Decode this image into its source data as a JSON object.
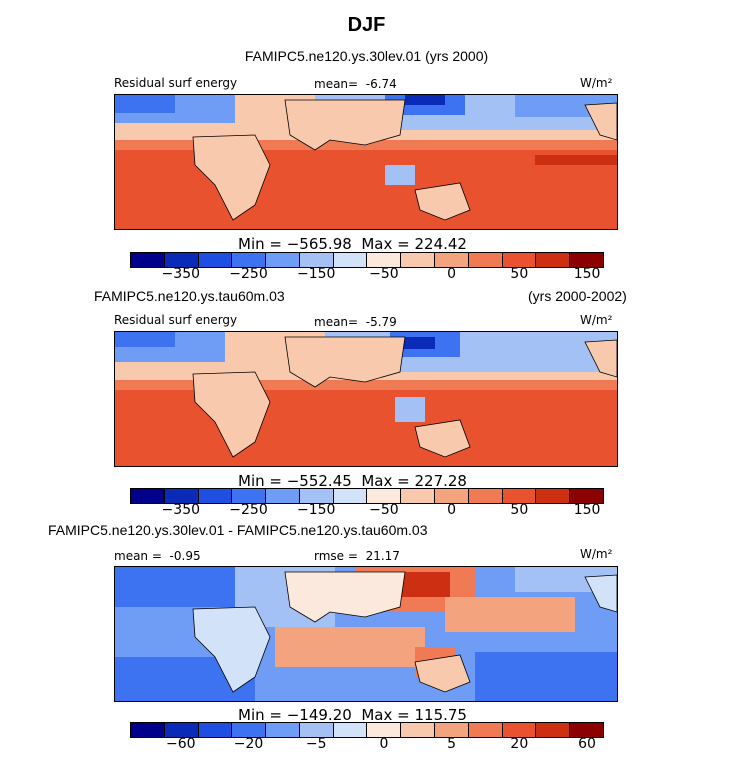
{
  "title": "DJF",
  "units": "W/m²",
  "chart_data": [
    {
      "type": "heatmap",
      "run": "FAMIPC5.ne120.ys.30lev.01",
      "years": "(yrs 2000)",
      "variable": "Residual surf energy",
      "mean_label": "mean=",
      "mean": "-6.74",
      "units": "W/m²",
      "min": "−565.98",
      "max": "224.42",
      "min_label": "Min =",
      "max_label": "Max =",
      "colorbar_ticks": [
        "−350",
        "−250",
        "−150",
        "−50",
        "0",
        "50",
        "150"
      ],
      "colorbar_colors": [
        "#00008b",
        "#0a2bb8",
        "#1f4fe0",
        "#3d73f0",
        "#6f9cf5",
        "#a3c1f5",
        "#d2e2f8",
        "#fbe9dd",
        "#f8c9ac",
        "#f4a37f",
        "#ef7a53",
        "#e8522f",
        "#cc2f12",
        "#8b0000"
      ]
    },
    {
      "type": "heatmap",
      "run": "FAMIPC5.ne120.ys.tau60m.03",
      "years": "(yrs 2000-2002)",
      "variable": "Residual surf energy",
      "mean_label": "mean=",
      "mean": "-5.79",
      "units": "W/m²",
      "min": "−552.45",
      "max": "227.28",
      "min_label": "Min =",
      "max_label": "Max =",
      "colorbar_ticks": [
        "−350",
        "−250",
        "−150",
        "−50",
        "0",
        "50",
        "150"
      ],
      "colorbar_colors": [
        "#00008b",
        "#0a2bb8",
        "#1f4fe0",
        "#3d73f0",
        "#6f9cf5",
        "#a3c1f5",
        "#d2e2f8",
        "#fbe9dd",
        "#f8c9ac",
        "#f4a37f",
        "#ef7a53",
        "#e8522f",
        "#cc2f12",
        "#8b0000"
      ]
    },
    {
      "type": "heatmap",
      "run": "FAMIPC5.ne120.ys.30lev.01 - FAMIPC5.ne120.ys.tau60m.03",
      "mean_label": "mean =",
      "mean": "-0.95",
      "rmse_label": "rmse =",
      "rmse": "21.17",
      "units": "W/m²",
      "min": "−149.20",
      "max": "115.75",
      "min_label": "Min =",
      "max_label": "Max =",
      "colorbar_ticks": [
        "−60",
        "−20",
        "−5",
        "0",
        "5",
        "20",
        "60"
      ],
      "colorbar_colors": [
        "#00008b",
        "#0a2bb8",
        "#1f4fe0",
        "#3d73f0",
        "#6f9cf5",
        "#a3c1f5",
        "#d2e2f8",
        "#fbe9dd",
        "#f8c9ac",
        "#f4a37f",
        "#ef7a53",
        "#e8522f",
        "#cc2f12",
        "#8b0000"
      ]
    }
  ]
}
